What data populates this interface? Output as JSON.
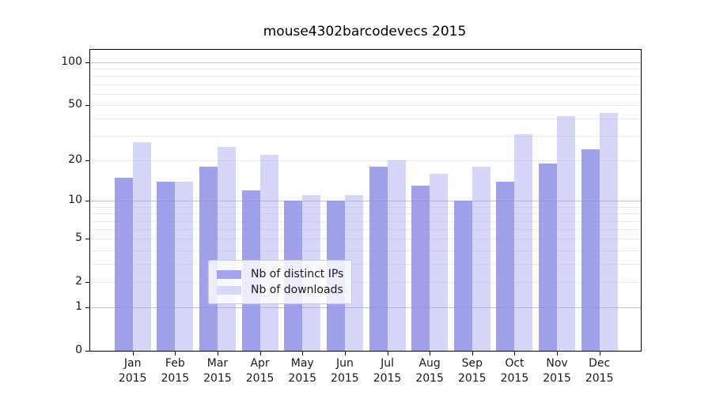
{
  "title": "mouse4302barcodevecs 2015",
  "chart_data": {
    "type": "bar",
    "title": "mouse4302barcodevecs 2015",
    "categories": [
      "Jan",
      "Feb",
      "Mar",
      "Apr",
      "May",
      "Jun",
      "Jul",
      "Aug",
      "Sep",
      "Oct",
      "Nov",
      "Dec"
    ],
    "year": "2015",
    "series": [
      {
        "name": "Nb of distinct IPs",
        "color": "rgba(138,138,230,0.8)",
        "legend_color": "#a3a3ef",
        "values": [
          15,
          14,
          18,
          12,
          10,
          10,
          18,
          13,
          10,
          14,
          19,
          24
        ]
      },
      {
        "name": "Nb of downloads",
        "color": "rgba(165,165,240,0.45)",
        "legend_color": "#d8d8f8",
        "values": [
          27,
          14,
          25,
          22,
          11,
          11,
          20,
          16,
          18,
          31,
          42,
          44
        ]
      }
    ],
    "yscale": "log1p",
    "y_tick_labels": [
      "100",
      "50",
      "20",
      "10",
      "5",
      "2",
      "1",
      "0"
    ],
    "y_minor_gridlines": [
      2,
      3,
      4,
      5,
      6,
      7,
      8,
      9,
      20,
      30,
      40,
      50,
      60,
      70,
      80,
      90
    ],
    "y_major_gridlines": [
      1,
      10,
      100
    ],
    "ylim": [
      0,
      122
    ],
    "grid": true,
    "legend_position": "lower-center"
  }
}
